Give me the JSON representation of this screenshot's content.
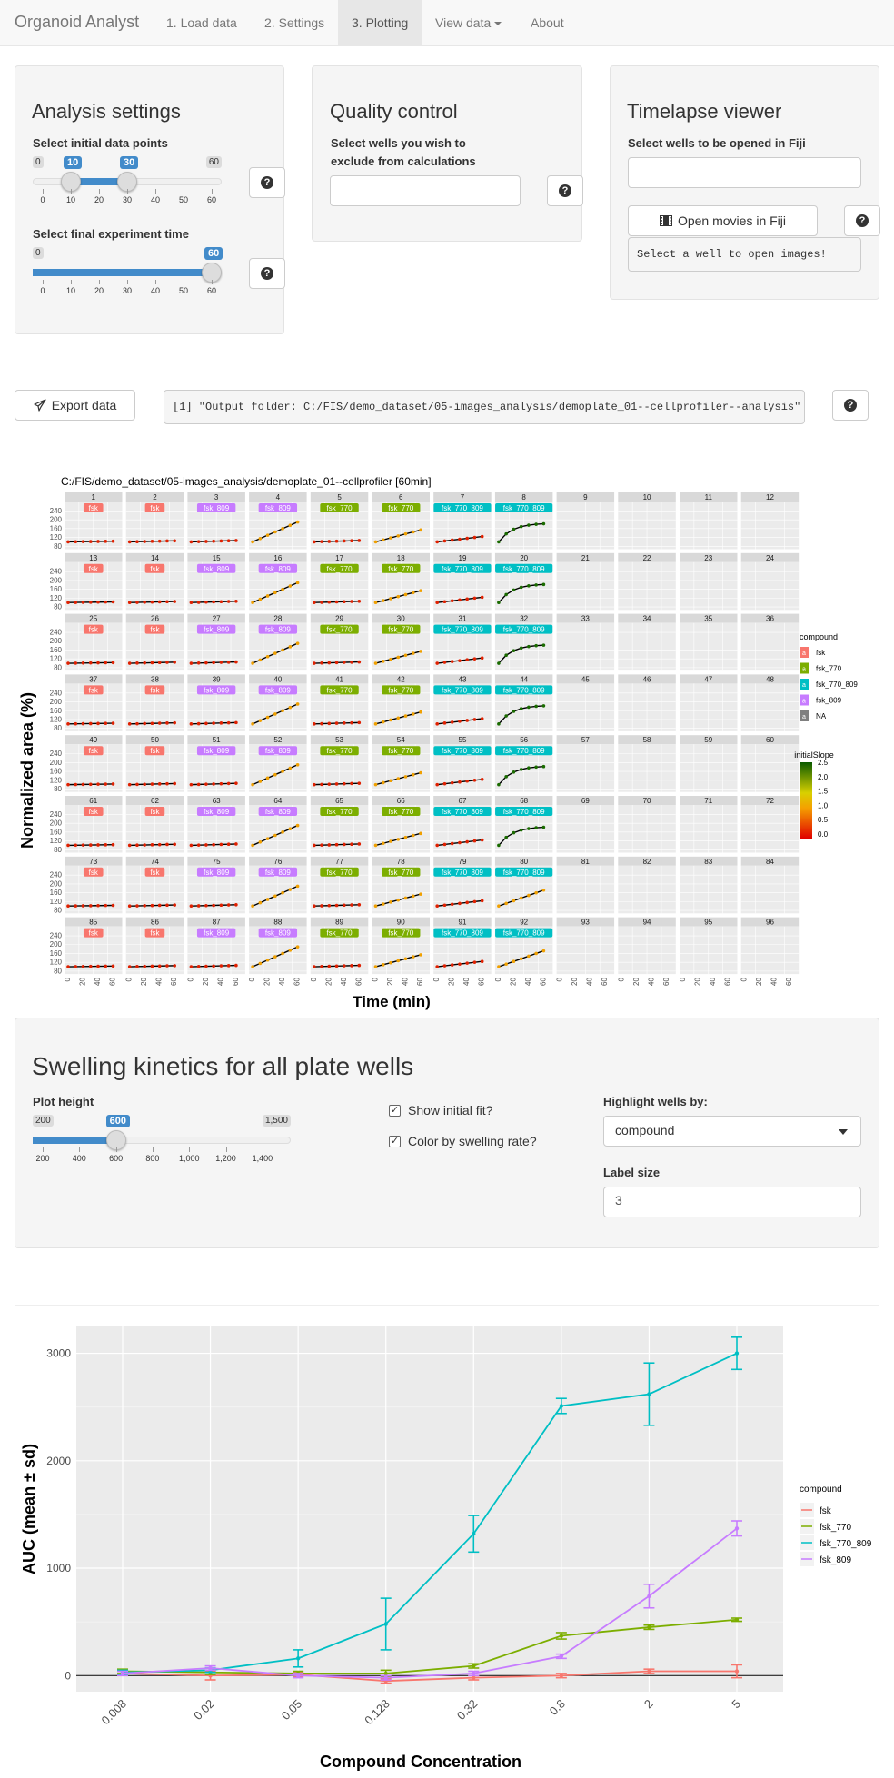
{
  "nav": {
    "brand": "Organoid Analyst",
    "items": [
      "1. Load data",
      "2. Settings",
      "3. Plotting",
      "View data",
      "About"
    ],
    "active_index": 2
  },
  "analysis": {
    "title": "Analysis settings",
    "initial_label": "Select initial data points",
    "initial_range": {
      "min": 0,
      "max": 60,
      "from": 10,
      "to": 30,
      "ticks": [
        0,
        10,
        20,
        30,
        40,
        50,
        60
      ]
    },
    "final_label": "Select final experiment time",
    "final_range": {
      "min": 0,
      "max": 60,
      "value": 60,
      "ticks": [
        0,
        10,
        20,
        30,
        40,
        50,
        60
      ]
    }
  },
  "quality": {
    "title": "Quality control",
    "label": "Select wells you wish to exclude from calculations",
    "value": ""
  },
  "timelapse": {
    "title": "Timelapse viewer",
    "label": "Select wells to be opened in Fiji",
    "value": "",
    "open_button": "Open movies in Fiji",
    "message": "Select a well to open images!"
  },
  "export": {
    "button": "Export data",
    "output": "[1] \"Output folder: C:/FIS/demo_dataset/05-images_analysis/demoplate_01--cellprofiler--analysis\""
  },
  "facet_plot": {
    "title": "C:/FIS/demo_dataset/05-images_analysis/demoplate_01--cellprofiler [60min]",
    "ylabel": "Normalized area (%)",
    "xlabel": "Time (min)",
    "yticks": [
      "240",
      "200",
      "160",
      "120",
      "80"
    ],
    "xticks": [
      "0",
      "20",
      "40",
      "60"
    ],
    "compound_columns": [
      "fsk",
      "fsk",
      "fsk_809",
      "fsk_809",
      "fsk_770",
      "fsk_770",
      "fsk_770_809",
      "fsk_770_809"
    ],
    "legend_title": "compound",
    "legend_items": [
      "fsk",
      "fsk_770",
      "fsk_770_809",
      "fsk_809",
      "NA"
    ],
    "legend_colors": [
      "#F8766D",
      "#7CAE00",
      "#00BFC4",
      "#C77CFF",
      "#7F7F7F"
    ],
    "slope_title": "initialSlope",
    "slope_ticks": [
      "2.5",
      "2.0",
      "1.5",
      "1.0",
      "0.5",
      "0.0"
    ]
  },
  "swelling": {
    "title": "Swelling kinetics for all plate wells",
    "plot_height_label": "Plot height",
    "plot_height": {
      "min": 200,
      "max": 1500,
      "value": 600,
      "tick_labels": [
        "200",
        "400",
        "600",
        "800",
        "1,000",
        "1,200",
        "1,400"
      ],
      "min_label": "200",
      "max_label": "1,500"
    },
    "show_fit_label": "Show initial fit?",
    "show_fit": true,
    "color_rate_label": "Color by swelling rate?",
    "color_rate": true,
    "highlight_label": "Highlight wells by:",
    "highlight_value": "compound",
    "label_size_label": "Label size",
    "label_size_value": "3"
  },
  "chart_data": {
    "type": "line",
    "categories": [
      "0.008",
      "0.02",
      "0.05",
      "0.128",
      "0.32",
      "0.8",
      "2",
      "5"
    ],
    "xlabel": "Compound Concentration",
    "ylabel": "AUC (mean ± sd)",
    "ylim": [
      -150,
      3250
    ],
    "yticks": [
      0,
      1000,
      2000,
      3000
    ],
    "legend_title": "compound",
    "legend_placement": "right",
    "series": [
      {
        "name": "fsk",
        "color": "#F8766D",
        "values": [
          20,
          0,
          10,
          -50,
          -20,
          0,
          40,
          40
        ],
        "sd": [
          20,
          40,
          20,
          20,
          20,
          20,
          20,
          60
        ]
      },
      {
        "name": "fsk_770",
        "color": "#7CAE00",
        "values": [
          40,
          30,
          20,
          20,
          90,
          370,
          450,
          520
        ],
        "sd": [
          20,
          20,
          20,
          30,
          20,
          30,
          20,
          15
        ]
      },
      {
        "name": "fsk_770_809",
        "color": "#00BFC4",
        "values": [
          30,
          50,
          160,
          480,
          1320,
          2510,
          2620,
          3000
        ],
        "sd": [
          20,
          20,
          80,
          240,
          170,
          70,
          290,
          150
        ]
      },
      {
        "name": "fsk_809",
        "color": "#C77CFF",
        "values": [
          20,
          70,
          0,
          -20,
          20,
          180,
          740,
          1370
        ],
        "sd": [
          20,
          20,
          20,
          20,
          20,
          20,
          110,
          70
        ]
      }
    ]
  }
}
